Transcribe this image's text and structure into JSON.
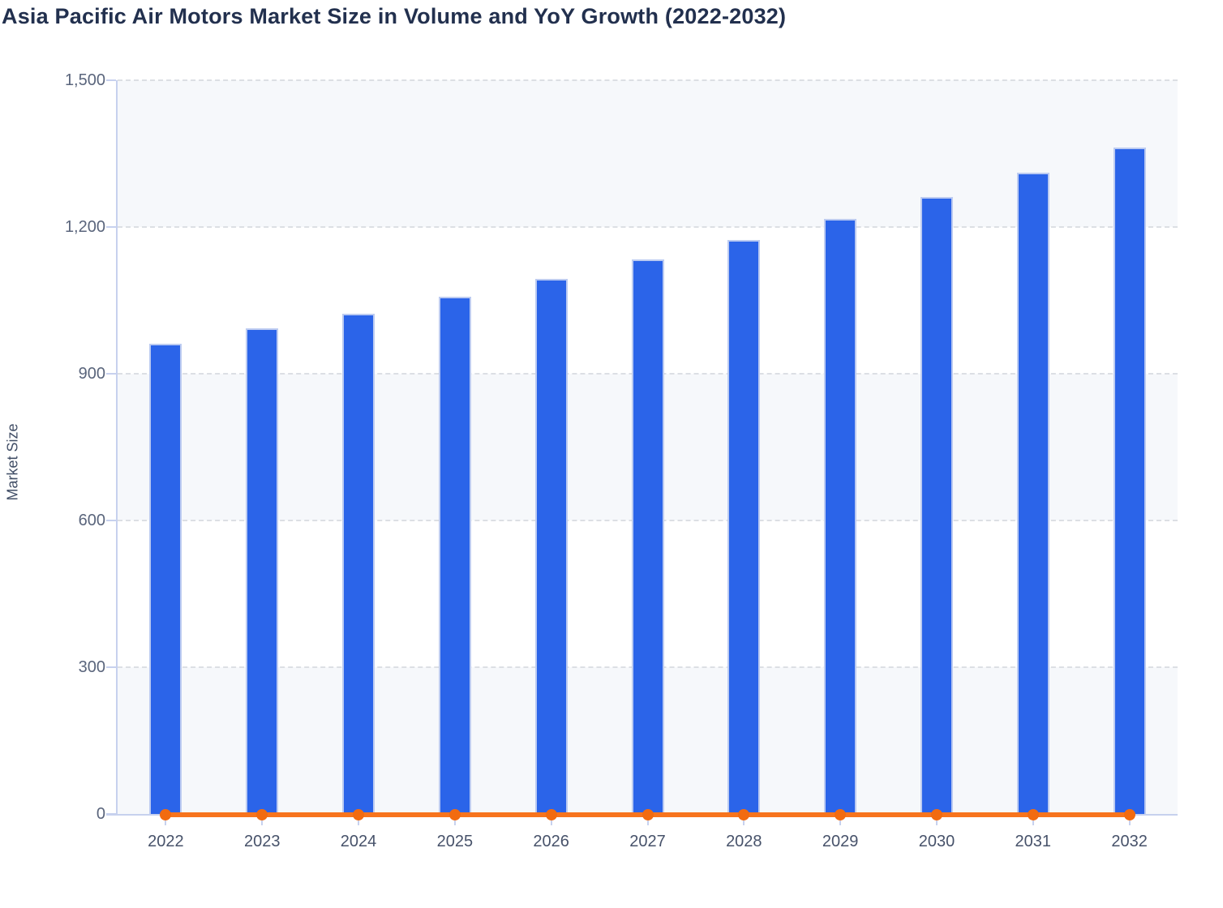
{
  "title": "Asia Pacific Air Motors Market Size in Volume and YoY Growth (2022-2032)",
  "colors": {
    "bar": "#2b64e9",
    "bar_border": "#bccbf1",
    "line": "#f7741d",
    "marker": "#f26b10",
    "band": "#f6f8fb",
    "gridline": "#dcdfe4",
    "axis": "#c7d1ee",
    "title_text": "#22304e",
    "ytick_text": "#5a657c",
    "xtick_text": "#47526a"
  },
  "chart_data": {
    "type": "bar",
    "title": "Asia Pacific Air Motors Market Size in Volume and YoY Growth (2022-2032)",
    "categories": [
      "2022",
      "2023",
      "2024",
      "2025",
      "2026",
      "2027",
      "2028",
      "2029",
      "2030",
      "2031",
      "2032"
    ],
    "series": [
      {
        "name": "Market Size",
        "type": "bar",
        "values": [
          962,
          992,
          1023,
          1058,
          1094,
          1133,
          1173,
          1216,
          1262,
          1311,
          1362
        ]
      },
      {
        "name": "YoY Growth",
        "type": "line",
        "values": [
          0,
          0,
          0,
          0,
          0,
          0,
          0,
          0,
          0,
          0,
          0
        ]
      }
    ],
    "xlabel": "",
    "ylabel": "Market Size",
    "ylim": [
      0,
      1500
    ],
    "yticks": [
      0,
      300,
      600,
      900,
      1200,
      1500
    ],
    "ytick_labels": [
      "0",
      "300",
      "600",
      "900",
      "1,200",
      "1,500"
    ],
    "grid": "horizontal-dashed",
    "plot_bands": "alternating-shaded",
    "legend_position": "none"
  }
}
